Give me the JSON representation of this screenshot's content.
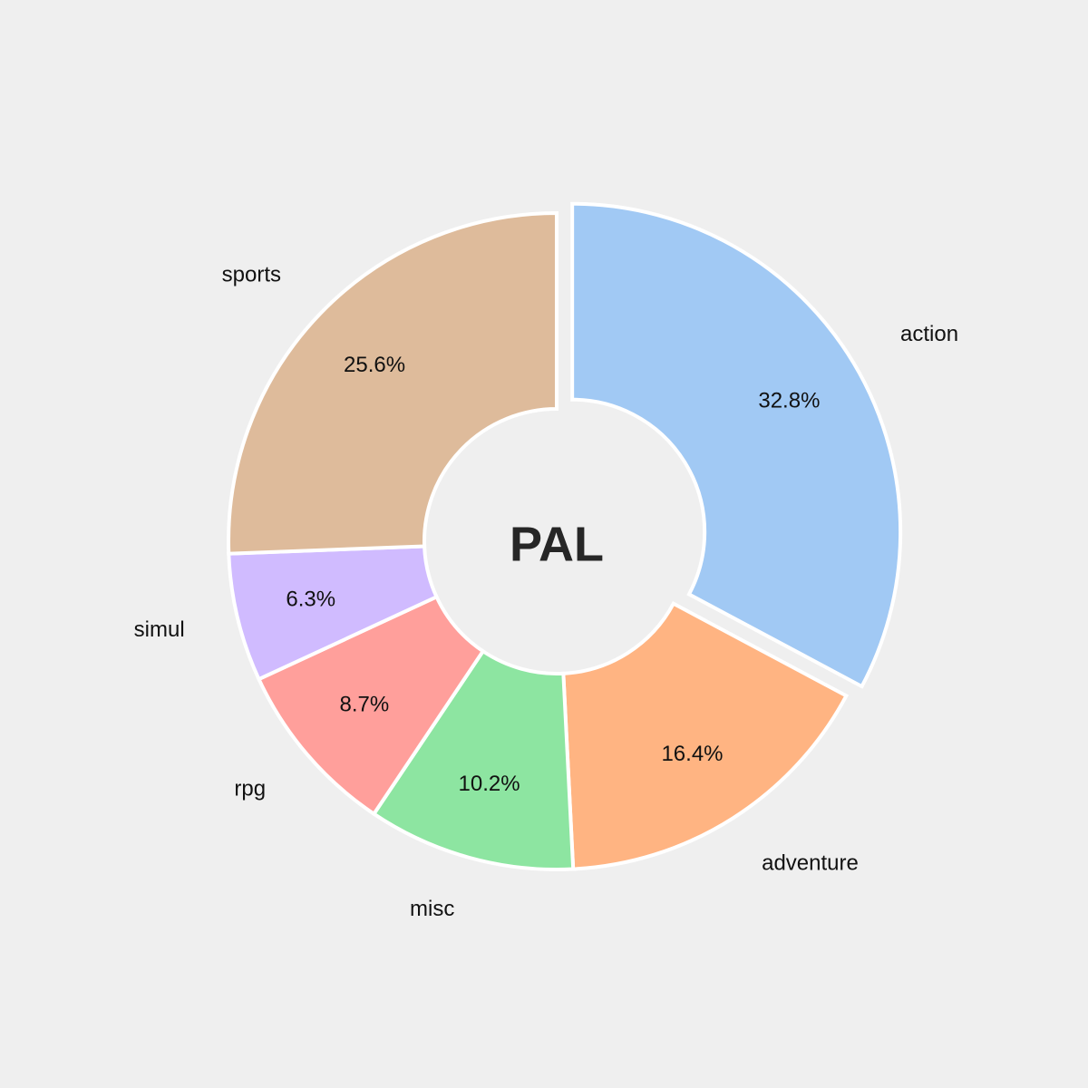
{
  "chart_data": {
    "type": "pie",
    "style": "donut",
    "center_label": "PAL",
    "start_angle_deg": 90,
    "direction": "clockwise",
    "background_color": "#efefef",
    "slices": [
      {
        "label": "action",
        "value": 32.8,
        "value_label": "32.8%",
        "color": "#a1c9f4",
        "exploded": true
      },
      {
        "label": "adventure",
        "value": 16.4,
        "value_label": "16.4%",
        "color": "#ffb482",
        "exploded": false
      },
      {
        "label": "misc",
        "value": 10.2,
        "value_label": "10.2%",
        "color": "#8de5a1",
        "exploded": false
      },
      {
        "label": "rpg",
        "value": 8.7,
        "value_label": "8.7%",
        "color": "#ff9f9b",
        "exploded": false
      },
      {
        "label": "simul",
        "value": 6.3,
        "value_label": "6.3%",
        "color": "#d0bbff",
        "exploded": false
      },
      {
        "label": "sports",
        "value": 25.6,
        "value_label": "25.6%",
        "color": "#debb9b",
        "exploded": false
      }
    ]
  }
}
